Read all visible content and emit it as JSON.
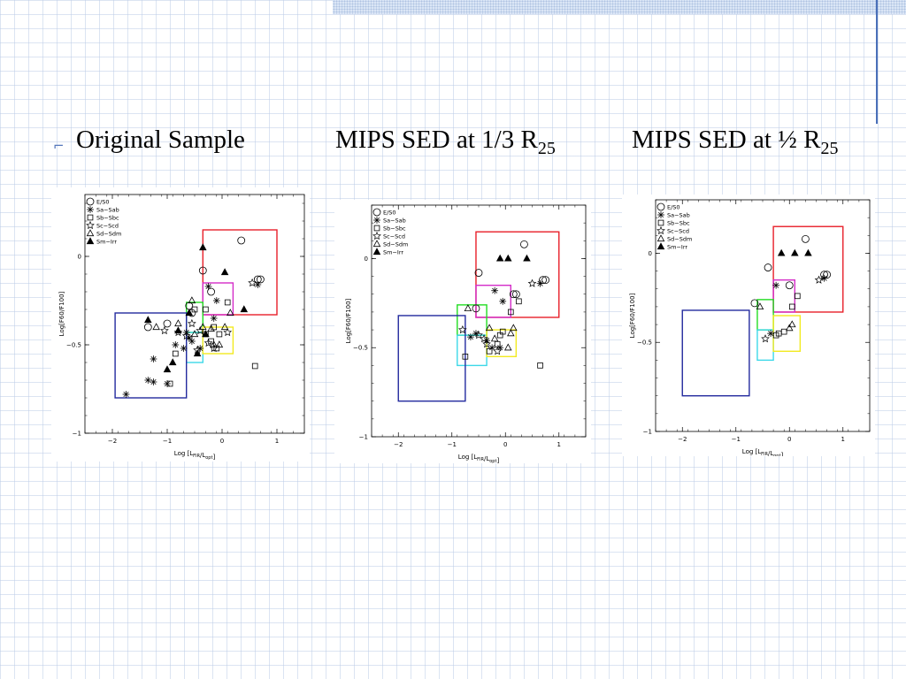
{
  "headings": {
    "h1": "Original Sample",
    "h2_prefix": "MIPS SED  at 1/3 R",
    "h2_sub": "25",
    "h3_prefix": "MIPS SED at ½ R",
    "h3_sub": "25"
  },
  "bullet": "⌐",
  "colors": {
    "red": "#e8202a",
    "magenta": "#d42cc8",
    "green": "#22dd22",
    "cyan": "#3dd8e8",
    "yellow": "#f2ea20",
    "blue": "#232a9e",
    "grid_line": "#becde8",
    "accent": "#4a6fb8"
  },
  "legend_markers": [
    "open-circle-icon",
    "asterisk-icon",
    "open-square-icon",
    "open-star-icon",
    "open-triangle-icon",
    "filled-triangle-icon"
  ],
  "chart_data": [
    {
      "type": "scatter",
      "xlabel_main": "Log  [L",
      "xlabel_sub1": "FIR",
      "xlabel_mid": "/L",
      "xlabel_sub2": "opt",
      "xlabel_end": "]",
      "ylabel": "Log[F60/F100]",
      "xlim": [
        -2.5,
        1.5
      ],
      "ylim": [
        -1,
        0.35
      ],
      "xticks": [
        -2,
        -1,
        0,
        1
      ],
      "yticks": [
        0,
        -0.5,
        -1
      ],
      "yticklabels": [
        "0",
        "−0.5",
        "−1"
      ],
      "xticklabels": [
        "−2",
        "−1",
        "0",
        "1"
      ],
      "legend": [
        "E/S0",
        "Sa−Sab",
        "Sb−Sbc",
        "Sc−Scd",
        "Sd−Sdm",
        "Sm−Irr"
      ],
      "boxes": [
        {
          "color": "red",
          "x": [
            -0.35,
            1.0
          ],
          "y": [
            -0.33,
            0.15
          ]
        },
        {
          "color": "magenta",
          "x": [
            -0.35,
            0.2
          ],
          "y": [
            -0.33,
            -0.15
          ]
        },
        {
          "color": "green",
          "x": [
            -0.65,
            -0.35
          ],
          "y": [
            -0.43,
            -0.26
          ]
        },
        {
          "color": "cyan",
          "x": [
            -0.65,
            -0.35
          ],
          "y": [
            -0.6,
            -0.43
          ]
        },
        {
          "color": "yellow",
          "x": [
            -0.35,
            0.2
          ],
          "y": [
            -0.55,
            -0.4
          ]
        },
        {
          "color": "blue",
          "x": [
            -1.95,
            -0.65
          ],
          "y": [
            -0.8,
            -0.32
          ]
        }
      ],
      "series": [
        {
          "name": "E/S0",
          "marker": "circle",
          "points": [
            [
              -1.0,
              -0.38
            ],
            [
              -0.6,
              -0.28
            ],
            [
              -0.35,
              -0.08
            ],
            [
              0.35,
              0.09
            ],
            [
              0.65,
              -0.13
            ],
            [
              0.7,
              -0.13
            ],
            [
              -1.35,
              -0.4
            ],
            [
              -0.2,
              -0.2
            ],
            [
              -0.55,
              -0.32
            ]
          ]
        },
        {
          "name": "Sa−Sab",
          "marker": "asterisk",
          "points": [
            [
              -1.75,
              -0.78
            ],
            [
              -1.35,
              -0.7
            ],
            [
              -1.25,
              -0.71
            ],
            [
              -1.25,
              -0.58
            ],
            [
              -1.0,
              -0.72
            ],
            [
              -0.6,
              -0.46
            ],
            [
              -0.65,
              -0.43
            ],
            [
              -0.55,
              -0.48
            ],
            [
              -0.4,
              -0.52
            ],
            [
              -0.7,
              -0.52
            ],
            [
              -0.1,
              -0.25
            ],
            [
              -0.25,
              -0.17
            ],
            [
              0.65,
              -0.16
            ],
            [
              -0.85,
              -0.5
            ],
            [
              -0.15,
              -0.35
            ]
          ]
        },
        {
          "name": "Sb−Sbc",
          "marker": "square",
          "points": [
            [
              -0.95,
              -0.72
            ],
            [
              -0.85,
              -0.55
            ],
            [
              -0.5,
              -0.3
            ],
            [
              -0.3,
              -0.44
            ],
            [
              -0.15,
              -0.4
            ],
            [
              -0.1,
              -0.52
            ],
            [
              -0.05,
              -0.44
            ],
            [
              0.1,
              -0.26
            ],
            [
              -0.3,
              -0.3
            ],
            [
              0.6,
              -0.62
            ],
            [
              -0.2,
              -0.48
            ]
          ]
        },
        {
          "name": "Sc−Scd",
          "marker": "star",
          "points": [
            [
              -1.05,
              -0.42
            ],
            [
              -0.8,
              -0.43
            ],
            [
              -0.65,
              -0.45
            ],
            [
              -0.4,
              -0.42
            ],
            [
              -0.25,
              -0.49
            ],
            [
              -0.15,
              -0.52
            ],
            [
              0.1,
              -0.43
            ],
            [
              0.55,
              -0.15
            ],
            [
              -0.55,
              -0.38
            ],
            [
              -0.45,
              -0.53
            ]
          ]
        },
        {
          "name": "Sd−Sdm",
          "marker": "triangle",
          "points": [
            [
              -1.2,
              -0.4
            ],
            [
              -0.8,
              -0.38
            ],
            [
              -0.55,
              -0.25
            ],
            [
              -0.35,
              -0.4
            ],
            [
              -0.2,
              -0.41
            ],
            [
              -0.05,
              -0.5
            ],
            [
              0.05,
              -0.4
            ],
            [
              0.15,
              -0.32
            ],
            [
              -0.15,
              -0.5
            ],
            [
              -0.5,
              -0.44
            ]
          ]
        },
        {
          "name": "Sm−Irr",
          "marker": "filled-triangle",
          "points": [
            [
              -1.35,
              -0.36
            ],
            [
              -1.0,
              -0.64
            ],
            [
              -0.9,
              -0.6
            ],
            [
              -0.6,
              -0.32
            ],
            [
              -0.35,
              0.05
            ],
            [
              0.05,
              -0.09
            ],
            [
              -0.45,
              -0.55
            ],
            [
              0.4,
              -0.3
            ],
            [
              -0.8,
              -0.42
            ],
            [
              -0.3,
              -0.44
            ]
          ]
        }
      ]
    },
    {
      "type": "scatter",
      "xlabel_main": "Log  [L",
      "xlabel_sub1": "FIR",
      "xlabel_mid": "/L",
      "xlabel_sub2": "opt",
      "xlabel_end": "]",
      "ylabel": "Log[F60/F100]",
      "xlim": [
        -2.5,
        1.5
      ],
      "ylim": [
        -1,
        0.3
      ],
      "xticks": [
        -2,
        -1,
        0,
        1
      ],
      "yticks": [
        0,
        -0.5,
        -1
      ],
      "yticklabels": [
        "0",
        "−0.5",
        "−1"
      ],
      "xticklabels": [
        "−2",
        "−1",
        "0",
        "1"
      ],
      "legend": [
        "E/S0",
        "Sa−Sab",
        "Sb−Sbc",
        "Sc−Scd",
        "Sd−Sdm",
        "Sm−Irr"
      ],
      "boxes": [
        {
          "color": "red",
          "x": [
            -0.55,
            1.0
          ],
          "y": [
            -0.33,
            0.15
          ]
        },
        {
          "color": "magenta",
          "x": [
            -0.55,
            0.1
          ],
          "y": [
            -0.33,
            -0.15
          ]
        },
        {
          "color": "green",
          "x": [
            -0.9,
            -0.35
          ],
          "y": [
            -0.43,
            -0.26
          ]
        },
        {
          "color": "cyan",
          "x": [
            -0.9,
            -0.35
          ],
          "y": [
            -0.6,
            -0.43
          ]
        },
        {
          "color": "yellow",
          "x": [
            -0.35,
            0.2
          ],
          "y": [
            -0.55,
            -0.4
          ]
        },
        {
          "color": "blue",
          "x": [
            -2.0,
            -0.75
          ],
          "y": [
            -0.8,
            -0.32
          ]
        }
      ],
      "series": [
        {
          "name": "E/S0",
          "marker": "circle",
          "points": [
            [
              -0.5,
              -0.08
            ],
            [
              0.35,
              0.08
            ],
            [
              0.7,
              -0.12
            ],
            [
              0.75,
              -0.12
            ],
            [
              -0.55,
              -0.28
            ],
            [
              0.2,
              -0.2
            ],
            [
              0.15,
              -0.2
            ]
          ]
        },
        {
          "name": "Sa−Sab",
          "marker": "asterisk",
          "points": [
            [
              -0.2,
              -0.18
            ],
            [
              -0.05,
              -0.24
            ],
            [
              0.65,
              -0.14
            ],
            [
              -0.55,
              -0.42
            ],
            [
              -0.35,
              -0.46
            ],
            [
              -0.25,
              -0.5
            ],
            [
              -0.1,
              -0.5
            ],
            [
              -0.65,
              -0.44
            ]
          ]
        },
        {
          "name": "Sb−Sbc",
          "marker": "square",
          "points": [
            [
              -0.75,
              -0.55
            ],
            [
              -0.1,
              -0.43
            ],
            [
              -0.05,
              -0.41
            ],
            [
              0.1,
              -0.3
            ],
            [
              0.25,
              -0.24
            ],
            [
              -0.15,
              -0.48
            ],
            [
              0.65,
              -0.6
            ],
            [
              -0.3,
              -0.52
            ]
          ]
        },
        {
          "name": "Sc−Scd",
          "marker": "star",
          "points": [
            [
              -0.8,
              -0.4
            ],
            [
              -0.5,
              -0.43
            ],
            [
              -0.35,
              -0.48
            ],
            [
              -0.15,
              -0.52
            ],
            [
              0.5,
              -0.14
            ],
            [
              -0.4,
              -0.45
            ]
          ]
        },
        {
          "name": "Sd−Sdm",
          "marker": "triangle",
          "points": [
            [
              -0.7,
              -0.28
            ],
            [
              -0.3,
              -0.39
            ],
            [
              0.1,
              -0.42
            ],
            [
              0.15,
              -0.39
            ],
            [
              0.05,
              -0.5
            ],
            [
              -0.2,
              -0.45
            ]
          ]
        },
        {
          "name": "Sm−Irr",
          "marker": "filled-triangle",
          "points": [
            [
              0.05,
              0.0
            ],
            [
              0.4,
              0.0
            ],
            [
              -0.1,
              0.0
            ]
          ]
        }
      ]
    },
    {
      "type": "scatter",
      "xlabel_main": "Log  [L",
      "xlabel_sub1": "FIR",
      "xlabel_mid": "/L",
      "xlabel_sub2": "opt",
      "xlabel_end": "]",
      "ylabel": "Log[F60/F100]",
      "xlim": [
        -2.5,
        1.5
      ],
      "ylim": [
        -1,
        0.3
      ],
      "xticks": [
        -2,
        -1,
        0,
        1
      ],
      "yticks": [
        0,
        -0.5,
        -1
      ],
      "yticklabels": [
        "0",
        "−0.5",
        "−1"
      ],
      "xticklabels": [
        "−2",
        "−1",
        "0",
        "1"
      ],
      "legend": [
        "E/S0",
        "Sa−Sab",
        "Sb−Sbc",
        "Sc−Scd",
        "Sd−Sdm",
        "Sm−Irr"
      ],
      "boxes": [
        {
          "color": "red",
          "x": [
            -0.3,
            1.0
          ],
          "y": [
            -0.33,
            0.15
          ]
        },
        {
          "color": "magenta",
          "x": [
            -0.3,
            0.1
          ],
          "y": [
            -0.33,
            -0.15
          ]
        },
        {
          "color": "green",
          "x": [
            -0.6,
            -0.3
          ],
          "y": [
            -0.43,
            -0.26
          ]
        },
        {
          "color": "cyan",
          "x": [
            -0.6,
            -0.3
          ],
          "y": [
            -0.6,
            -0.43
          ]
        },
        {
          "color": "yellow",
          "x": [
            -0.3,
            0.2
          ],
          "y": [
            -0.55,
            -0.35
          ]
        },
        {
          "color": "blue",
          "x": [
            -2.0,
            -0.75
          ],
          "y": [
            -0.8,
            -0.32
          ]
        }
      ],
      "series": [
        {
          "name": "E/S0",
          "marker": "circle",
          "points": [
            [
              -0.4,
              -0.08
            ],
            [
              0.3,
              0.08
            ],
            [
              0.65,
              -0.12
            ],
            [
              0.7,
              -0.12
            ],
            [
              -0.65,
              -0.28
            ],
            [
              0.0,
              -0.18
            ]
          ]
        },
        {
          "name": "Sa−Sab",
          "marker": "asterisk",
          "points": [
            [
              -0.25,
              -0.18
            ],
            [
              0.65,
              -0.14
            ],
            [
              -0.35,
              -0.45
            ]
          ]
        },
        {
          "name": "Sb−Sbc",
          "marker": "square",
          "points": [
            [
              -0.25,
              -0.46
            ],
            [
              -0.1,
              -0.44
            ],
            [
              0.05,
              -0.3
            ],
            [
              0.15,
              -0.24
            ],
            [
              -0.2,
              -0.45
            ]
          ]
        },
        {
          "name": "Sc−Scd",
          "marker": "star",
          "points": [
            [
              0.55,
              -0.15
            ],
            [
              -0.45,
              -0.48
            ]
          ]
        },
        {
          "name": "Sd−Sdm",
          "marker": "triangle",
          "points": [
            [
              -0.55,
              -0.3
            ],
            [
              0.0,
              -0.42
            ],
            [
              0.05,
              -0.4
            ]
          ]
        },
        {
          "name": "Sm−Irr",
          "marker": "filled-triangle",
          "points": [
            [
              -0.15,
              0.0
            ],
            [
              0.1,
              0.0
            ],
            [
              0.35,
              0.0
            ]
          ]
        }
      ]
    }
  ]
}
